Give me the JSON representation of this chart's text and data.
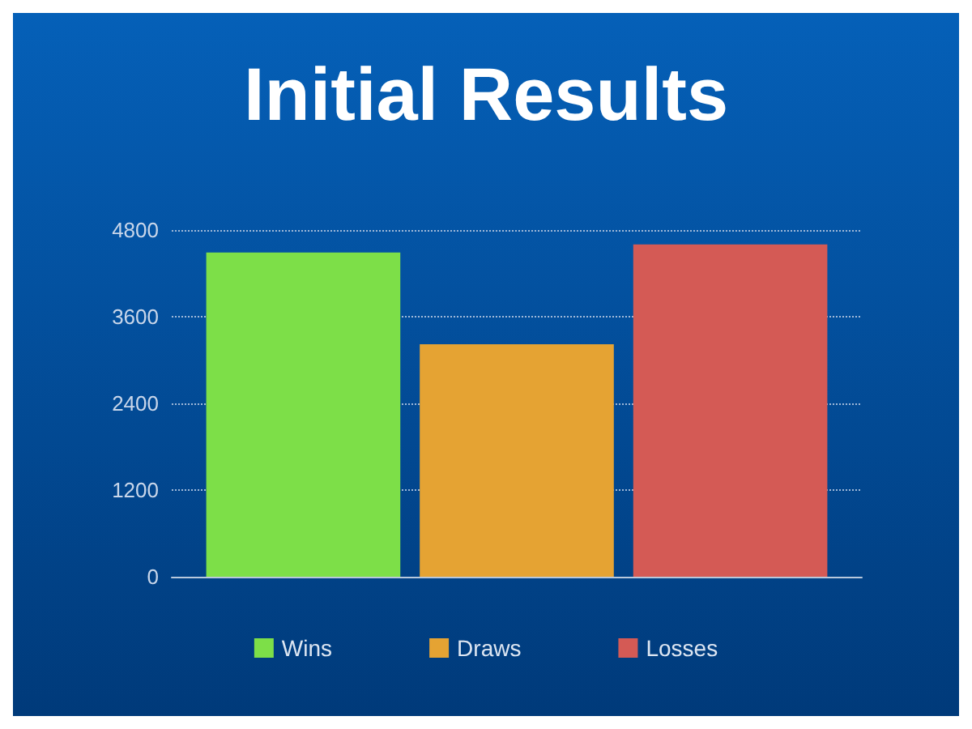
{
  "chart_data": {
    "type": "bar",
    "title": "Initial Results",
    "categories": [
      null
    ],
    "series": [
      {
        "name": "Wins",
        "color": "#7ddf48",
        "values": [
          4490
        ]
      },
      {
        "name": "Draws",
        "color": "#e5a333",
        "values": [
          3220
        ]
      },
      {
        "name": "Losses",
        "color": "#d45a55",
        "values": [
          4600
        ]
      }
    ],
    "ylim": [
      0,
      4800
    ],
    "yticks": [
      0,
      1200,
      2400,
      3600,
      4800
    ],
    "grid": "y",
    "legend": "bottom"
  }
}
